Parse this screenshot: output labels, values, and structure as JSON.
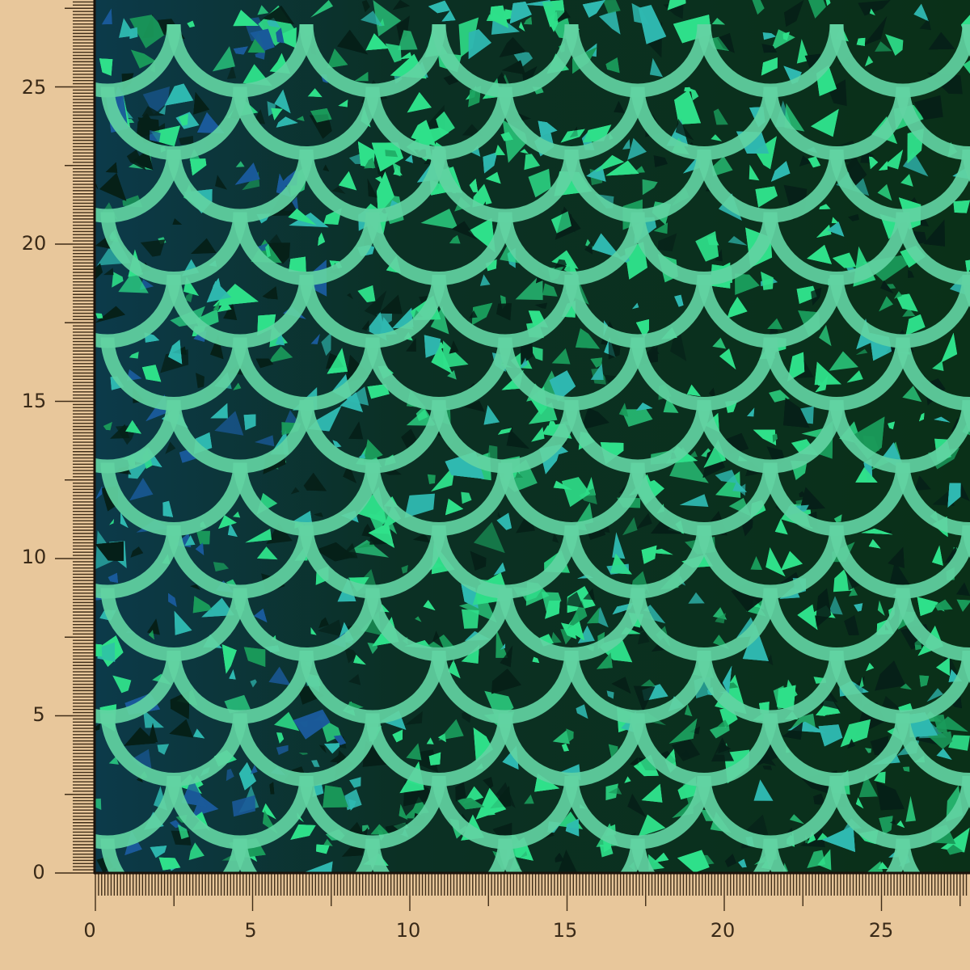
{
  "rulers": {
    "vertical_labels": [
      "0",
      "5",
      "10",
      "15",
      "20",
      "25"
    ],
    "horizontal_labels": [
      "0",
      "5",
      "10",
      "15",
      "20",
      "25"
    ],
    "ticks_per_unit": 10
  },
  "colors": {
    "background": "#e8c79b",
    "ruler_ink": "#3f2d18",
    "fabric_dark": "#0a2a1c",
    "shard_green": "#2fe08a",
    "shard_teal": "#2fb8b0",
    "shard_blue": "#1a5a9a",
    "scale_outline": "#62d3a2"
  }
}
